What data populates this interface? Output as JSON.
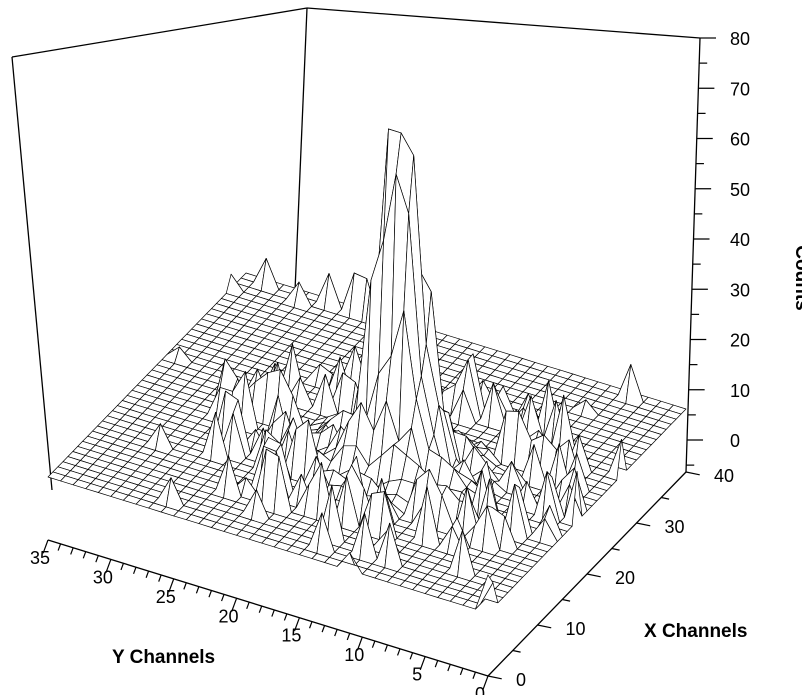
{
  "chart_data": {
    "type": "surface3d",
    "title": "",
    "zlabel": "Counts",
    "xlabel": "X Channels",
    "ylabel": "Y Channels",
    "zlim": [
      -5,
      80
    ],
    "xlim": [
      0,
      40
    ],
    "ylim": [
      0,
      35
    ],
    "zticks": [
      "80",
      "70",
      "60",
      "50",
      "40",
      "30",
      "20",
      "10",
      "0"
    ],
    "xticks": [
      "0",
      "10",
      "20",
      "30",
      "40"
    ],
    "yticks": [
      "0",
      "5",
      "10",
      "15",
      "20",
      "25",
      "30",
      "35"
    ],
    "grid": {
      "nx": 40,
      "ny": 35
    },
    "peak": {
      "x": 18,
      "y": 14,
      "counts": 63
    }
  }
}
